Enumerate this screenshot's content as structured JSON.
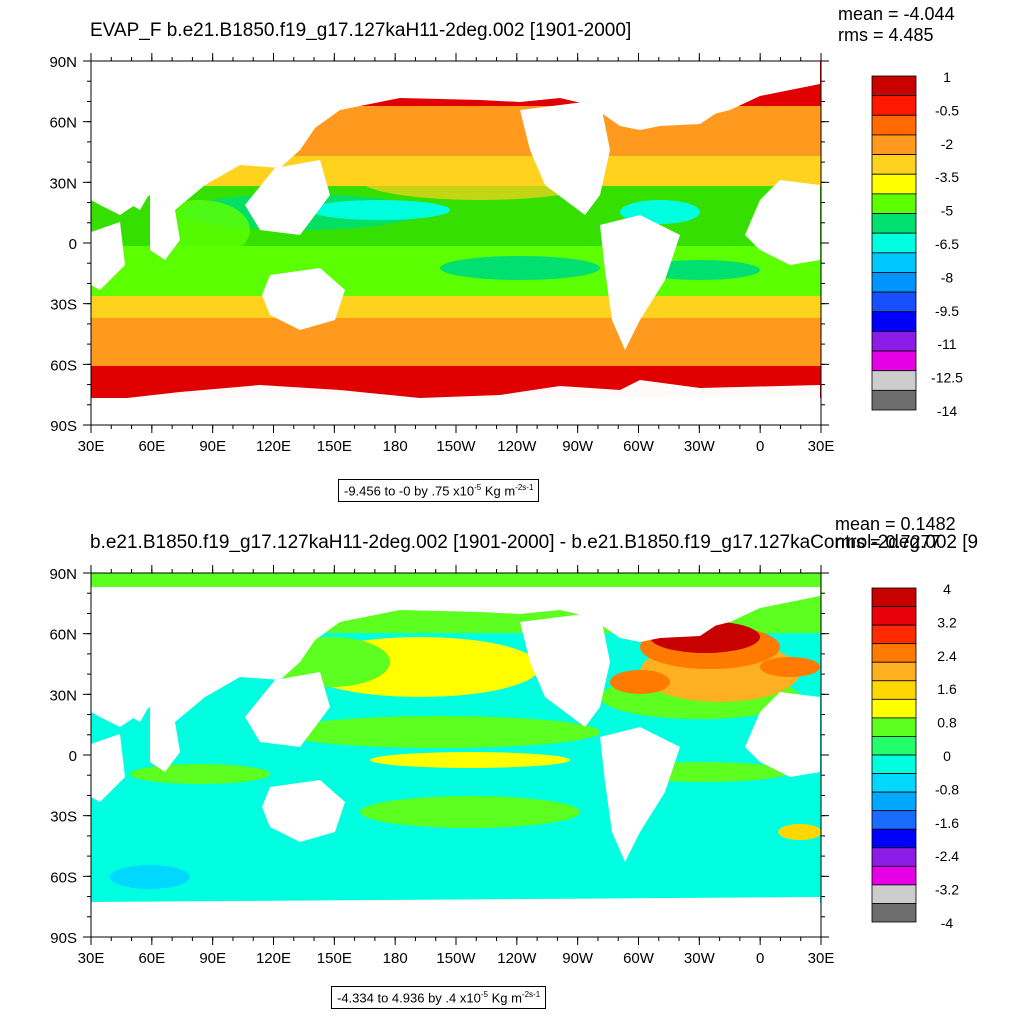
{
  "panels": [
    {
      "title": "EVAP_F b.e21.B1850.f19_g17.127kaH11-2deg.002 [1901-2000]",
      "mean": "mean = -4.044",
      "rms": "rms = 4.485",
      "note_prefix": "-9.456 to -0 by .75 x10",
      "note_exp": "-5",
      "note_unit": " Kg m",
      "note_unit_exp": "-2s-1",
      "lat_labels": [
        "90N",
        "60N",
        "30N",
        "0",
        "30S",
        "60S",
        "90S"
      ],
      "lon_labels": [
        "30E",
        "60E",
        "90E",
        "120E",
        "150E",
        "180",
        "150W",
        "120W",
        "90W",
        "60W",
        "30W",
        "0",
        "30E"
      ],
      "colorbar": {
        "labels": [
          "1",
          "-0.5",
          "-2",
          "-3.5",
          "-5",
          "-6.5",
          "-8",
          "-9.5",
          "-11",
          "-12.5",
          "-14"
        ],
        "colors": [
          "#c80000",
          "#ff1800",
          "#ff6a00",
          "#ff9a1f",
          "#ffd21e",
          "#ffff00",
          "#5cff00",
          "#00e070",
          "#00ffe0",
          "#00c8ff",
          "#0094ff",
          "#1850ff",
          "#0000ff",
          "#8c1ce6",
          "#e600e6",
          "#cdcdcd",
          "#6e6e6e"
        ]
      }
    },
    {
      "title": "b.e21.B1850.f19_g17.127kaH11-2deg.002 [1901-2000] - b.e21.B1850.f19_g17.127kaControl-2deg.002 [9",
      "mean": "mean = 0.1482",
      "rms": "rms = 0.7277",
      "note_prefix": "-4.334 to 4.936 by .4 x10",
      "note_exp": "-5",
      "note_unit": " Kg m",
      "note_unit_exp": "-2s-1",
      "lat_labels": [
        "90N",
        "60N",
        "30N",
        "0",
        "30S",
        "60S",
        "90S"
      ],
      "lon_labels": [
        "30E",
        "60E",
        "90E",
        "120E",
        "150E",
        "180",
        "150W",
        "120W",
        "90W",
        "60W",
        "30W",
        "0",
        "30E"
      ],
      "colorbar": {
        "labels": [
          "4",
          "3.2",
          "2.4",
          "1.6",
          "0.8",
          "0",
          "-0.8",
          "-1.6",
          "-2.4",
          "-3.2",
          "-4"
        ],
        "colors": [
          "#c80000",
          "#e8000a",
          "#ff2a00",
          "#ff7a00",
          "#ffb020",
          "#ffd700",
          "#ffff00",
          "#5cff20",
          "#22ff6a",
          "#00ffe0",
          "#00d8ff",
          "#00a8ff",
          "#1a6cff",
          "#0000ff",
          "#8c1ce6",
          "#e600e6",
          "#cdcdcd",
          "#6e6e6e"
        ]
      }
    }
  ]
}
